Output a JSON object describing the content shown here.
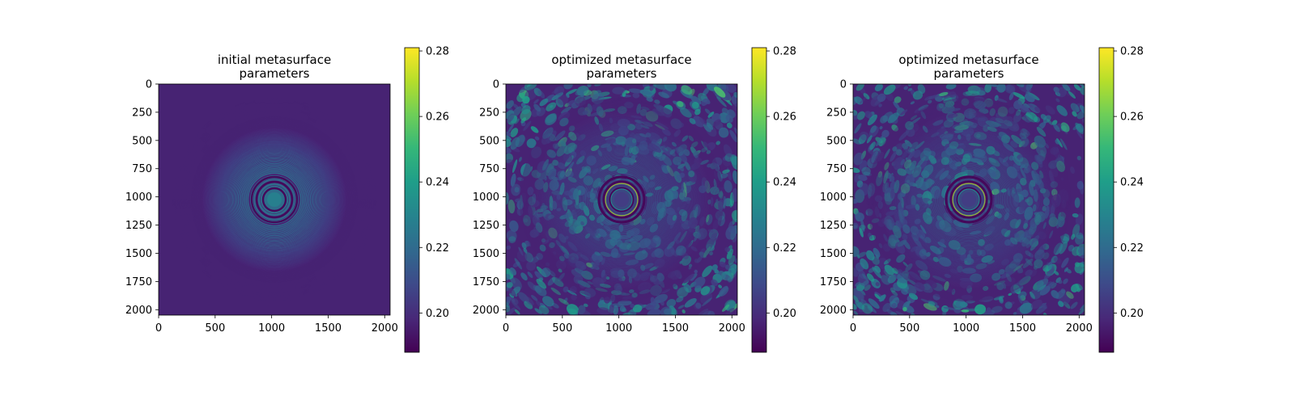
{
  "chart_data": [
    {
      "type": "heatmap",
      "title": "initial metasurface\nparameters",
      "colormap": "viridis",
      "clim": [
        0.188,
        0.281
      ],
      "xlim": [
        0,
        2048
      ],
      "ylim": [
        2048,
        0
      ],
      "xticks": [
        "0",
        "500",
        "1000",
        "1500",
        "2000"
      ],
      "yticks": [
        "0",
        "250",
        "500",
        "750",
        "1000",
        "1250",
        "1500",
        "1750",
        "2000"
      ],
      "colorbar_ticks": [
        "0.20",
        "0.22",
        "0.24",
        "0.26",
        "0.28"
      ],
      "pattern": "concentric rings centered at (1024, 1024) on uniform background ~0.197"
    },
    {
      "type": "heatmap",
      "title": "optimized metasurface\nparameters",
      "colormap": "viridis",
      "clim": [
        0.188,
        0.281
      ],
      "xlim": [
        0,
        2048
      ],
      "ylim": [
        2048,
        0
      ],
      "xticks": [
        "0",
        "500",
        "1000",
        "1500",
        "2000"
      ],
      "yticks": [
        "0",
        "250",
        "500",
        "750",
        "1000",
        "1250",
        "1500",
        "1750",
        "2000"
      ],
      "colorbar_ticks": [
        "0.20",
        "0.22",
        "0.24",
        "0.26",
        "0.28"
      ],
      "pattern": "concentric rings with noisy speckle texture"
    },
    {
      "type": "heatmap",
      "title": "optimized metasurface\nparameters",
      "colormap": "viridis",
      "clim": [
        0.188,
        0.281
      ],
      "xlim": [
        0,
        2048
      ],
      "ylim": [
        2048,
        0
      ],
      "xticks": [
        "0",
        "500",
        "1000",
        "1500",
        "2000"
      ],
      "yticks": [
        "0",
        "250",
        "500",
        "750",
        "1000",
        "1250",
        "1500",
        "1750",
        "2000"
      ],
      "colorbar_ticks": [
        "0.20",
        "0.22",
        "0.24",
        "0.26",
        "0.28"
      ],
      "pattern": "concentric rings with noisy speckle texture"
    }
  ]
}
